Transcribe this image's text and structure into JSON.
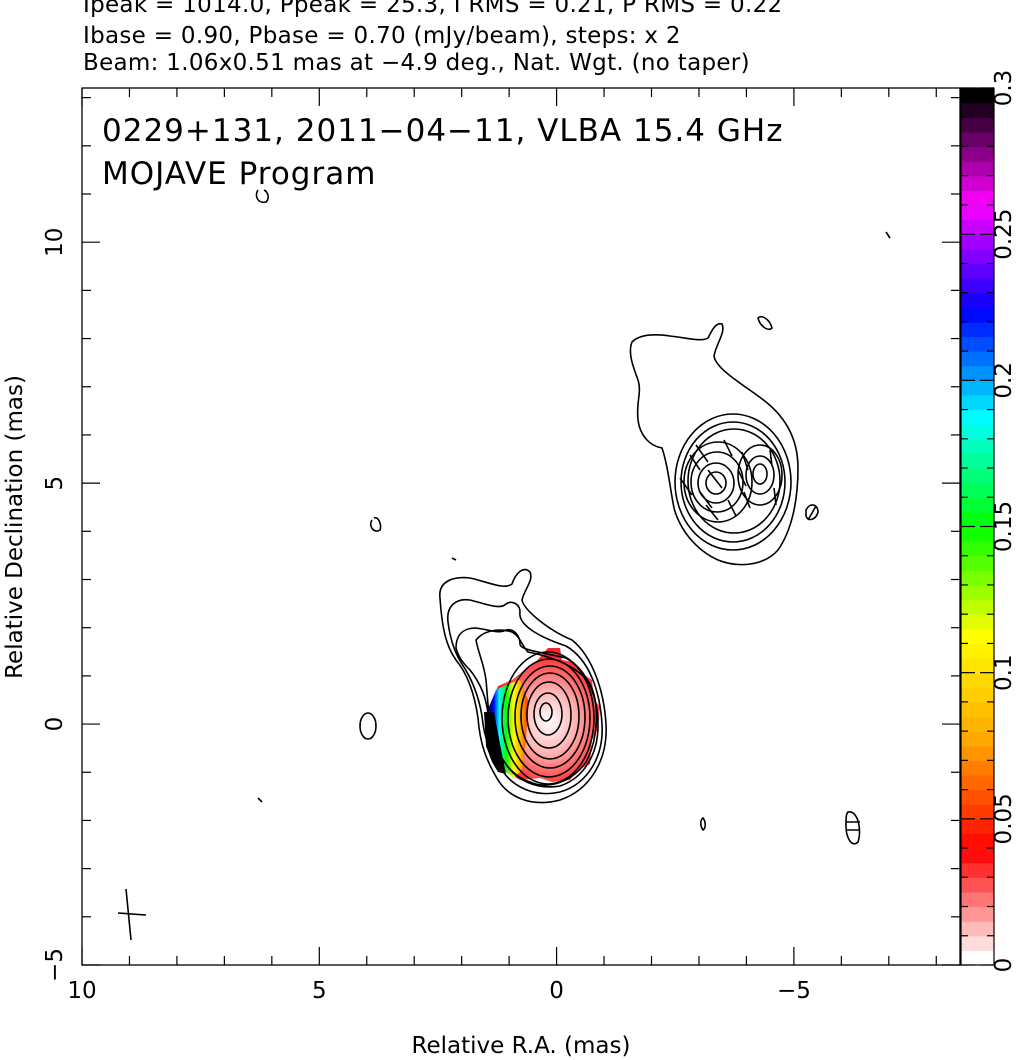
{
  "header": {
    "line1": "Ipeak = 1014.0, Ppeak = 25.3, I RMS = 0.21, P RMS = 0.22",
    "line2": "Ibase = 0.90, Pbase = 0.70 (mJy/beam), steps: x 2",
    "line3": "Beam: 1.06x0.51 mas at −4.9 deg., Nat. Wgt. (no taper)"
  },
  "annotation": {
    "line1": "0229+131, 2011−04−11, VLBA 15.4 GHz",
    "line2": "MOJAVE Program"
  },
  "chart_data": {
    "type": "heatmap",
    "xlabel": "Relative R.A. (mas)",
    "ylabel": "Relative Declination (mas)",
    "xlim": [
      10,
      -8.5
    ],
    "ylim": [
      -5,
      13.2
    ],
    "x_ticks": [
      10,
      5,
      0,
      -5
    ],
    "x_tick_labels": [
      "10",
      "5",
      "0",
      "−5"
    ],
    "y_ticks": [
      -5,
      0,
      5,
      10
    ],
    "y_tick_labels": [
      "−5",
      "0",
      "5",
      "10"
    ],
    "colorbar": {
      "range": [
        0,
        0.3
      ],
      "ticks": [
        0,
        0.05,
        0.1,
        0.15,
        0.2,
        0.25,
        0.3
      ],
      "tick_labels": [
        "0",
        "0.05",
        "0.1",
        "0.15",
        "0.2",
        "0.25",
        "0.3"
      ],
      "colors": [
        "#ffffff",
        "#ff0000",
        "#ffa500",
        "#ffff00",
        "#00ff00",
        "#00ffff",
        "#0000ff",
        "#ff00ff",
        "#000000"
      ]
    },
    "beam": {
      "major_mas": 1.06,
      "minor_mas": 0.51,
      "pa_deg": -4.9,
      "center": [
        8.9,
        -4.0
      ]
    },
    "core": {
      "center": [
        0.3,
        0.0
      ]
    },
    "jet_component": {
      "center": [
        -3.6,
        5.0
      ]
    },
    "contour_levels_mJy": [
      0.9,
      1.8,
      3.6,
      7.2,
      14.4,
      28.8,
      57.6,
      115.2,
      230.4,
      460.8,
      921.6
    ]
  }
}
